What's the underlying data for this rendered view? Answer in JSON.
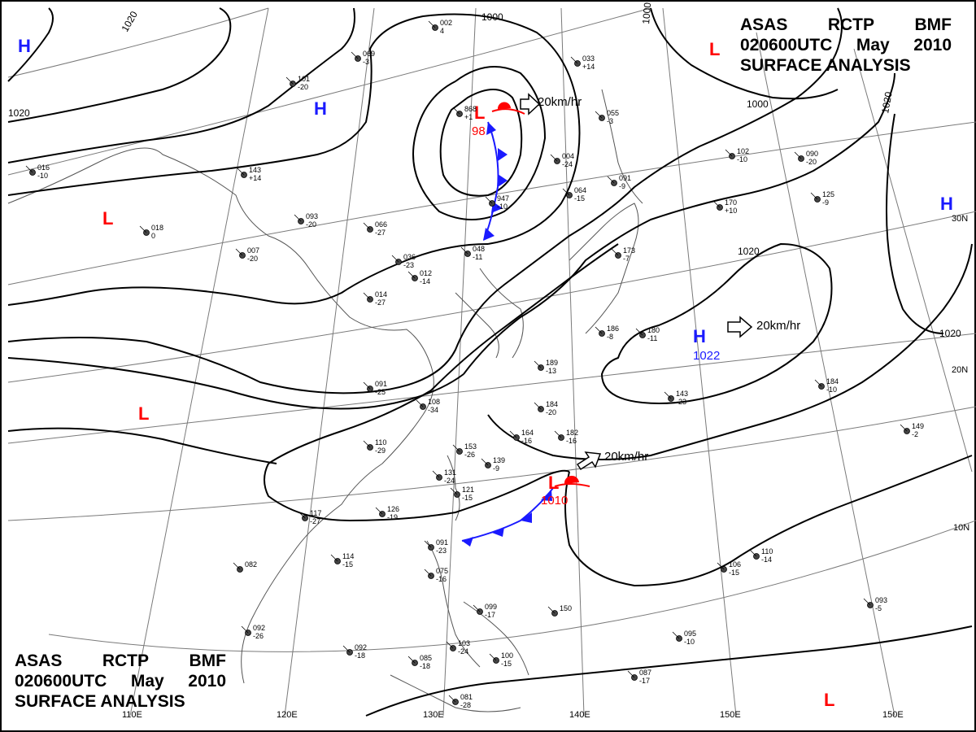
{
  "header": {
    "line1": [
      "ASAS",
      "RCTP",
      "BMF"
    ],
    "line2": [
      "020600UTC",
      "May",
      "2010"
    ],
    "line3": "SURFACE ANALYSIS"
  },
  "footer": {
    "line1": [
      "ASAS",
      "RCTP",
      "BMF"
    ],
    "line2": [
      "020600UTC",
      "May",
      "2010"
    ],
    "line3": "SURFACE ANALYSIS"
  },
  "longitude_labels": [
    "110E",
    "120E",
    "130E",
    "140E",
    "150E"
  ],
  "latitude_labels": [
    "30N",
    "20N",
    "10N"
  ],
  "isobar_labels": {
    "a": "1020",
    "b": "1020",
    "c": "1000",
    "d": "1000",
    "e": "1000",
    "f": "1020",
    "g": "1020",
    "h": "1020"
  },
  "pressure_centers": [
    {
      "type": "H",
      "color": "#1a1aff"
    },
    {
      "type": "H",
      "color": "#1a1aff"
    },
    {
      "type": "H",
      "color": "#1a1aff"
    },
    {
      "type": "H",
      "color": "#1a1aff",
      "value": "1022"
    },
    {
      "type": "L",
      "color": "#ff0000"
    },
    {
      "type": "L",
      "color": "#ff0000"
    },
    {
      "type": "L",
      "color": "#ff0000",
      "value": "98"
    },
    {
      "type": "L",
      "color": "#ff0000"
    },
    {
      "type": "L",
      "color": "#ff0000",
      "value": "1010"
    },
    {
      "type": "L",
      "color": "#ff0000"
    }
  ],
  "motion_labels": [
    "20km/hr",
    "20km/hr",
    "20km/hr"
  ],
  "colors": {
    "high": "#1a1aff",
    "low": "#ff0000",
    "cold_front": "#1a1aff",
    "warm_front": "#ff0000",
    "isobar": "#000000",
    "grid": "#7a7a7a",
    "coast": "#555555"
  },
  "stations": [
    {
      "a": "002",
      "b": "4"
    },
    {
      "a": "069",
      "b": "-3"
    },
    {
      "a": "101",
      "b": "-20"
    },
    {
      "a": "143",
      "b": "+14"
    },
    {
      "a": "093",
      "b": "-20"
    },
    {
      "a": "066",
      "b": "-27"
    },
    {
      "a": "036",
      "b": "-23"
    },
    {
      "a": "012",
      "b": "-14"
    },
    {
      "a": "014",
      "b": "-27"
    },
    {
      "a": "048",
      "b": "-11"
    },
    {
      "a": "947",
      "b": "-10"
    },
    {
      "a": "004",
      "b": "-24"
    },
    {
      "a": "033",
      "b": "+14"
    },
    {
      "a": "055",
      "b": "-3"
    },
    {
      "a": "091",
      "b": "-9"
    },
    {
      "a": "064",
      "b": "-15"
    },
    {
      "a": "102",
      "b": "-10"
    },
    {
      "a": "090",
      "b": "-20"
    },
    {
      "a": "170",
      "b": "+10"
    },
    {
      "a": "125",
      "b": "-9"
    },
    {
      "a": "173",
      "b": "-7"
    },
    {
      "a": "186",
      "b": "-8"
    },
    {
      "a": "184",
      "b": "-10"
    },
    {
      "a": "091",
      "b": "-25"
    },
    {
      "a": "108",
      "b": "-34"
    },
    {
      "a": "110",
      "b": "-29"
    },
    {
      "a": "153",
      "b": "-26"
    },
    {
      "a": "139",
      "b": "-9"
    },
    {
      "a": "131",
      "b": "-24"
    },
    {
      "a": "121",
      "b": "-15"
    },
    {
      "a": "126",
      "b": "-19"
    },
    {
      "a": "117",
      "b": "-27"
    },
    {
      "a": "114",
      "b": "-15"
    },
    {
      "a": "082",
      "b": ""
    },
    {
      "a": "092",
      "b": "-26"
    },
    {
      "a": "092",
      "b": "-18"
    },
    {
      "a": "085",
      "b": "-18"
    },
    {
      "a": "103",
      "b": "-24"
    },
    {
      "a": "100",
      "b": "-15"
    },
    {
      "a": "081",
      "b": "-28"
    },
    {
      "a": "099",
      "b": "-17"
    },
    {
      "a": "150",
      "b": ""
    },
    {
      "a": "095",
      "b": "-10"
    },
    {
      "a": "087",
      "b": "-17"
    },
    {
      "a": "106",
      "b": "-15"
    },
    {
      "a": "110",
      "b": "-14"
    },
    {
      "a": "093",
      "b": "-5"
    },
    {
      "a": "149",
      "b": "-2"
    },
    {
      "a": "182",
      "b": "-16"
    },
    {
      "a": "164",
      "b": "-16"
    },
    {
      "a": "184",
      "b": "-20"
    },
    {
      "a": "189",
      "b": "-13"
    },
    {
      "a": "143",
      "b": "-23"
    },
    {
      "a": "180",
      "b": "-11"
    },
    {
      "a": "075",
      "b": "-16"
    },
    {
      "a": "091",
      "b": "-23"
    },
    {
      "a": "868",
      "b": "+1"
    },
    {
      "a": "018",
      "b": "0"
    },
    {
      "a": "007",
      "b": "-20"
    },
    {
      "a": "016",
      "b": "-10"
    }
  ]
}
